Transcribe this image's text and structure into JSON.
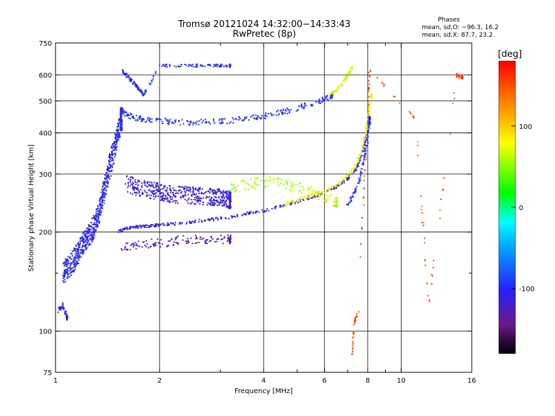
{
  "chart_data": {
    "type": "scatter",
    "title": "Tromsø 20121024 14:32:00−14:33:43",
    "subtitle": "RwPretec (8p)",
    "xlabel": "Frequency [MHz]",
    "ylabel": "Stationary phase Virtual Height [km]",
    "xscale": "log",
    "yscale": "log",
    "xlim": [
      1,
      16
    ],
    "ylim": [
      75,
      750
    ],
    "x_ticks": [
      1,
      2,
      4,
      6,
      8,
      10,
      16
    ],
    "x_minor_ticks": [
      3,
      5,
      7,
      9
    ],
    "x_grid": [
      2,
      4,
      6,
      8,
      10
    ],
    "y_ticks": [
      75,
      100,
      200,
      300,
      400,
      500,
      600,
      750
    ],
    "y_minor_ticks": [
      150
    ],
    "y_grid": [
      100,
      200,
      300,
      400,
      500,
      600
    ],
    "grid": true,
    "colorbar": {
      "label": "[deg]",
      "min": -180,
      "max": 180,
      "ticks": [
        100,
        0,
        -100
      ],
      "placement": "right"
    },
    "stats_block": {
      "title": "Phases",
      "line_o": "mean, sd,O: −96.3, 16.2",
      "line_x": "mean, sd,X:  87.7, 23.2"
    },
    "series": [
      {
        "x": [
          1.05,
          1.1,
          1.15,
          1.2,
          1.25,
          1.3,
          1.35,
          1.4,
          1.45,
          1.5,
          1.55
        ],
        "y": [
          150,
          158,
          170,
          185,
          195,
          210,
          240,
          280,
          330,
          380,
          440
        ],
        "phase": -105,
        "spread": 0.08
      },
      {
        "x": [
          1.52,
          1.6,
          1.7,
          1.8,
          1.9,
          2.0,
          2.2,
          2.5,
          2.8,
          3.2,
          3.6,
          4.0,
          4.5,
          5.0,
          5.5,
          6.0,
          6.5,
          7.0,
          7.4,
          7.7,
          7.9,
          8.1
        ],
        "y": [
          200,
          205,
          207,
          208,
          209,
          210,
          212,
          215,
          218,
          222,
          228,
          232,
          240,
          247,
          255,
          263,
          275,
          290,
          310,
          340,
          380,
          430
        ],
        "phase": -110,
        "spread": 0.01
      },
      {
        "x": [
          1.55,
          1.6,
          1.7,
          1.8,
          2.0,
          2.2,
          2.5,
          2.8,
          3.2,
          3.6,
          4.0,
          4.5,
          5.0,
          5.5,
          6.0,
          6.3
        ],
        "y": [
          470,
          455,
          445,
          440,
          436,
          432,
          430,
          432,
          436,
          442,
          450,
          462,
          475,
          490,
          505,
          520
        ],
        "phase": -100,
        "spread": 0.02
      },
      {
        "x": [
          1.55,
          1.6,
          1.65,
          1.7,
          1.75,
          1.8,
          2.0,
          2.3,
          2.6,
          2.9,
          3.2
        ],
        "y": [
          620,
          600,
          580,
          560,
          540,
          520,
          640,
          640,
          640,
          640,
          640
        ],
        "phase": -100,
        "spread": 0.01
      },
      {
        "x": [
          1.55,
          1.7,
          1.9,
          2.1,
          2.3,
          2.6,
          2.9,
          3.2
        ],
        "y": [
          180,
          182,
          185,
          185,
          190,
          190,
          190,
          190
        ],
        "phase": -130,
        "spread": 0.03
      },
      {
        "x": [
          1.6,
          1.8,
          2.0,
          2.2,
          2.5,
          2.8,
          3.0,
          3.2
        ],
        "y": [
          280,
          270,
          265,
          260,
          258,
          256,
          255,
          250
        ],
        "phase": -115,
        "spread": 0.06
      },
      {
        "x": [
          3.2,
          3.5,
          3.8,
          4.2,
          4.6,
          5.0,
          5.5,
          6.0,
          6.5
        ],
        "y": [
          270,
          278,
          282,
          285,
          280,
          272,
          265,
          255,
          248
        ],
        "phase": 60,
        "spread": 0.04
      },
      {
        "x": [
          4.6,
          5.0,
          5.5,
          6.0,
          6.5,
          7.0,
          7.4,
          7.7,
          7.9,
          8.05,
          8.2
        ],
        "y": [
          243,
          250,
          258,
          265,
          278,
          295,
          320,
          355,
          400,
          460,
          520
        ],
        "phase": 80,
        "spread": 0.01
      },
      {
        "x": [
          6.2,
          6.5,
          6.8,
          7.0,
          7.2
        ],
        "y": [
          520,
          540,
          570,
          600,
          630
        ],
        "phase": 70,
        "spread": 0.01
      },
      {
        "x": [
          7.0,
          7.3,
          7.6,
          7.8,
          8.0,
          8.1
        ],
        "y": [
          240,
          260,
          290,
          330,
          380,
          440
        ],
        "phase": -95,
        "spread": 0.02
      },
      {
        "x": [
          7.2,
          7.3,
          7.5,
          8.0,
          8.1,
          11,
          12,
          14.5,
          15
        ],
        "y": [
          85,
          105,
          115,
          450,
          620,
          440,
          120,
          600,
          590
        ],
        "phase": 150,
        "spread": 0.01
      },
      {
        "x": [
          1.02,
          1.05,
          1.08
        ],
        "y": [
          115,
          120,
          110
        ],
        "phase": -110,
        "spread": 0.02
      }
    ]
  }
}
